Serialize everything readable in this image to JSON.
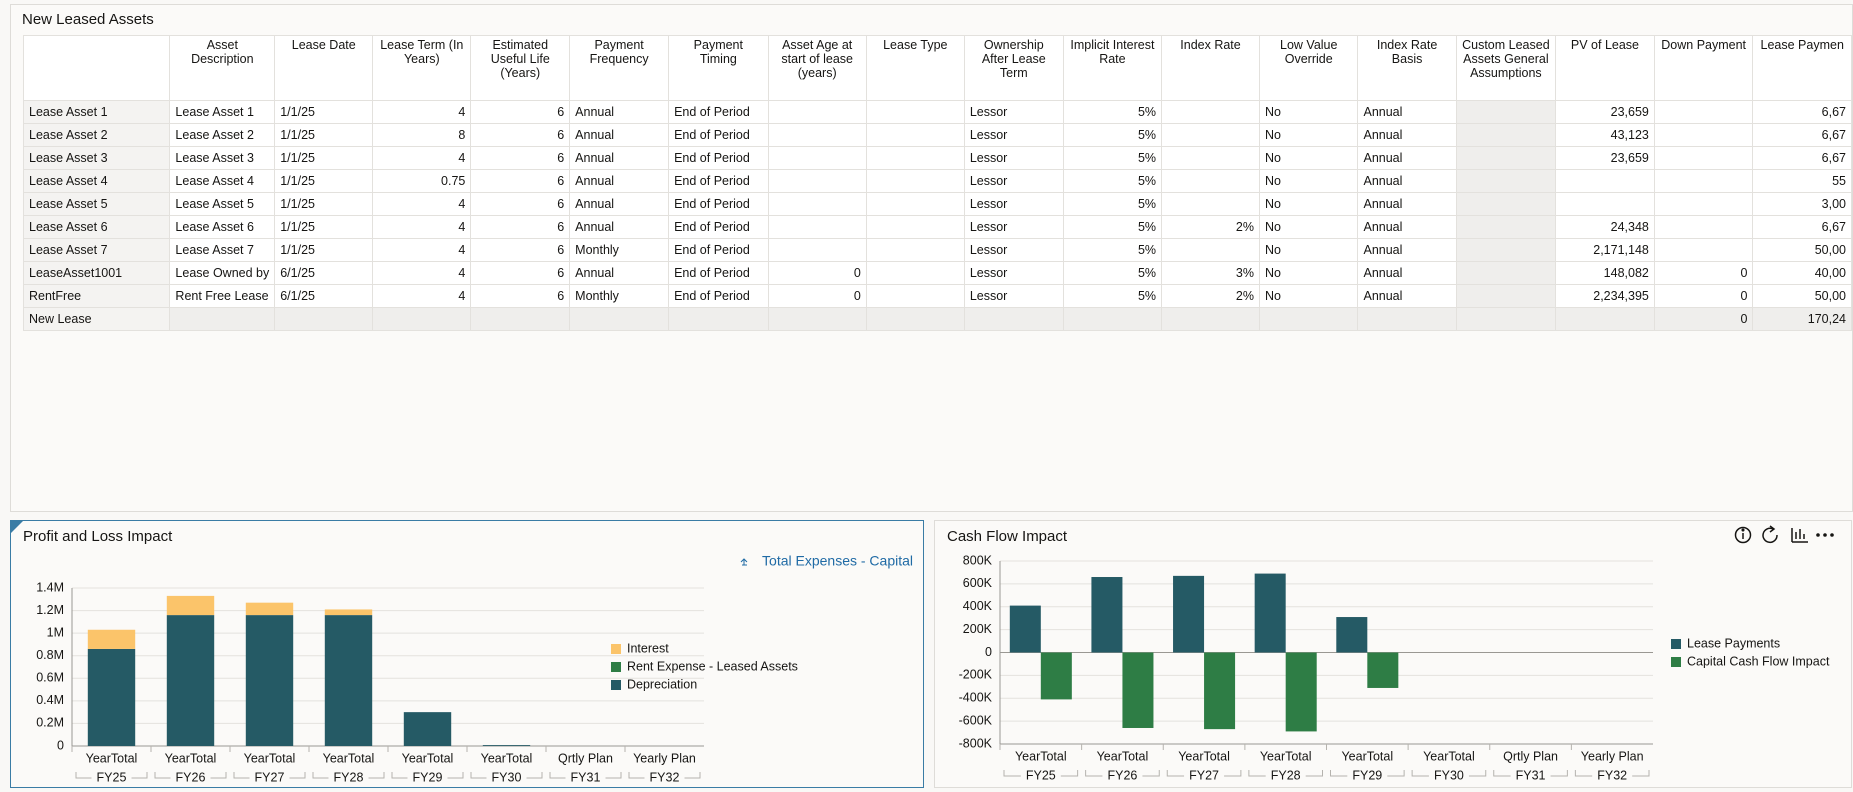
{
  "table": {
    "title": "New Leased Assets",
    "columns": [
      "Asset Description",
      "Lease Date",
      "Lease Term (In Years)",
      "Estimated Useful Life (Years)",
      "Payment Frequency",
      "Payment Timing",
      "Asset Age at start of lease (years)",
      "Lease Type",
      "Ownership After Lease Term",
      "Implicit Interest Rate",
      "Index Rate",
      "Low Value Override",
      "Index Rate Basis",
      "Custom Leased Assets General Assumptions",
      "PV of Lease",
      "Down Payment",
      "Lease Paymen"
    ],
    "rows": [
      {
        "label": "Lease Asset 1",
        "cells": [
          "Lease Asset 1",
          "1/1/25",
          "4",
          "6",
          "Annual",
          "End of Period",
          null,
          null,
          "Lessor",
          "5%",
          null,
          "No",
          "Annual",
          null,
          "23,659",
          null,
          "6,67"
        ]
      },
      {
        "label": "Lease Asset 2",
        "cells": [
          "Lease Asset 2",
          "1/1/25",
          "8",
          "6",
          "Annual",
          "End of Period",
          null,
          null,
          "Lessor",
          "5%",
          null,
          "No",
          "Annual",
          null,
          "43,123",
          null,
          "6,67"
        ]
      },
      {
        "label": "Lease Asset 3",
        "cells": [
          "Lease Asset 3",
          "1/1/25",
          "4",
          "6",
          "Annual",
          "End of Period",
          null,
          null,
          "Lessor",
          "5%",
          null,
          "No",
          "Annual",
          null,
          "23,659",
          null,
          "6,67"
        ]
      },
      {
        "label": "Lease Asset 4",
        "cells": [
          "Lease Asset 4",
          "1/1/25",
          "0.75",
          "6",
          "Annual",
          "End of Period",
          null,
          null,
          "Lessor",
          "5%",
          null,
          "No",
          "Annual",
          null,
          null,
          null,
          "55"
        ]
      },
      {
        "label": "Lease Asset 5",
        "cells": [
          "Lease Asset 5",
          "1/1/25",
          "4",
          "6",
          "Annual",
          "End of Period",
          null,
          null,
          "Lessor",
          "5%",
          null,
          "No",
          "Annual",
          null,
          null,
          null,
          "3,00"
        ]
      },
      {
        "label": "Lease Asset 6",
        "cells": [
          "Lease Asset 6",
          "1/1/25",
          "4",
          "6",
          "Annual",
          "End of Period",
          null,
          null,
          "Lessor",
          "5%",
          "2%",
          "No",
          "Annual",
          null,
          "24,348",
          null,
          "6,67"
        ]
      },
      {
        "label": "Lease Asset 7",
        "cells": [
          "Lease Asset 7",
          "1/1/25",
          "4",
          "6",
          "Monthly",
          "End of Period",
          null,
          null,
          "Lessor",
          "5%",
          null,
          "No",
          "Annual",
          null,
          "2,171,148",
          null,
          "50,00"
        ]
      },
      {
        "label": "LeaseAsset1001",
        "cells": [
          "Lease Owned by",
          "6/1/25",
          "4",
          "6",
          "Annual",
          "End of Period",
          "0",
          null,
          "Lessor",
          "5%",
          "3%",
          "No",
          "Annual",
          null,
          "148,082",
          "0",
          "40,00"
        ]
      },
      {
        "label": "RentFree",
        "cells": [
          "Rent Free Lease",
          "6/1/25",
          "4",
          "6",
          "Monthly",
          "End of Period",
          "0",
          null,
          "Lessor",
          "5%",
          "2%",
          "No",
          "Annual",
          null,
          "2,234,395",
          "0",
          "50,00"
        ]
      },
      {
        "label": "New Lease",
        "cells": [
          null,
          null,
          null,
          null,
          null,
          null,
          null,
          null,
          null,
          null,
          null,
          null,
          null,
          null,
          null,
          "0",
          "170,24"
        ]
      }
    ]
  },
  "chart_data": [
    {
      "type": "bar",
      "stacked": true,
      "title": "Profit and Loss Impact",
      "annotation": "Total Expenses - Capital",
      "categories": [
        "YearTotal",
        "YearTotal",
        "YearTotal",
        "YearTotal",
        "YearTotal",
        "YearTotal",
        "Qrtly Plan",
        "Yearly Plan"
      ],
      "groups": [
        "FY25",
        "FY26",
        "FY27",
        "FY28",
        "FY29",
        "FY30",
        "FY31",
        "FY32"
      ],
      "series": [
        {
          "name": "Depreciation",
          "color": "#255a65",
          "values": [
            860000,
            1160000,
            1160000,
            1160000,
            300000,
            8000,
            null,
            null
          ]
        },
        {
          "name": "Rent Expense - Leased Assets",
          "color": "#2e7d45",
          "values": [
            0,
            0,
            0,
            0,
            0,
            0,
            null,
            null
          ]
        },
        {
          "name": "Interest",
          "color": "#fbc46a",
          "values": [
            170000,
            170000,
            110000,
            50000,
            0,
            0,
            null,
            null
          ]
        }
      ],
      "ylim": [
        0,
        1400000
      ],
      "yticks": [
        0,
        {
          "value": 200000,
          "label": "0.2M"
        },
        {
          "value": 400000,
          "label": "0.4M"
        },
        {
          "value": 600000,
          "label": "0.6M"
        },
        {
          "value": 800000,
          "label": "0.8M"
        },
        {
          "value": 1000000,
          "label": "1M"
        },
        {
          "value": 1200000,
          "label": "1.2M"
        },
        {
          "value": 1400000,
          "label": "1.4M"
        }
      ],
      "grid": true
    },
    {
      "type": "bar",
      "stacked": false,
      "title": "Cash Flow Impact",
      "categories": [
        "YearTotal",
        "YearTotal",
        "YearTotal",
        "YearTotal",
        "YearTotal",
        "YearTotal",
        "Qrtly Plan",
        "Yearly Plan"
      ],
      "groups": [
        "FY25",
        "FY26",
        "FY27",
        "FY28",
        "FY29",
        "FY30",
        "FY31",
        "FY32"
      ],
      "series": [
        {
          "name": "Lease Payments",
          "color": "#255a65",
          "values": [
            410000,
            660000,
            670000,
            690000,
            310000,
            null,
            null,
            null
          ]
        },
        {
          "name": "Capital Cash Flow Impact",
          "color": "#2e7d45",
          "values": [
            -410000,
            -660000,
            -670000,
            -690000,
            -310000,
            null,
            null,
            null
          ]
        }
      ],
      "ylim": [
        -800000,
        800000
      ],
      "yticks": [
        {
          "value": -800000,
          "label": "-800K"
        },
        {
          "value": -600000,
          "label": "-600K"
        },
        {
          "value": -400000,
          "label": "-400K"
        },
        {
          "value": -200000,
          "label": "-200K"
        },
        0,
        {
          "value": 200000,
          "label": "200K"
        },
        {
          "value": 400000,
          "label": "400K"
        },
        {
          "value": 600000,
          "label": "600K"
        },
        {
          "value": 800000,
          "label": "800K"
        }
      ],
      "grid": true
    }
  ]
}
